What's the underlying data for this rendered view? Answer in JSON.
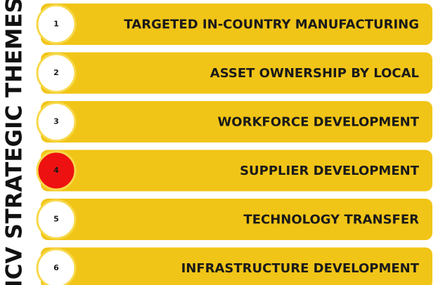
{
  "title": "ICV STRATEGIC THEMES",
  "items": [
    {
      "number": "1",
      "label": "TARGETED IN-COUNTRY MANUFACTURING",
      "circle_color": "#ffffff"
    },
    {
      "number": "2",
      "label": "ASSET OWNERSHIP BY LOCAL",
      "circle_color": "#ffffff"
    },
    {
      "number": "3",
      "label": "WORKFORCE DEVELOPMENT",
      "circle_color": "#ffffff"
    },
    {
      "number": "4",
      "label": "SUPPLIER DEVELOPMENT",
      "circle_color": "#ee1111"
    },
    {
      "number": "5",
      "label": "TECHNOLOGY TRANSFER",
      "circle_color": "#ffffff"
    },
    {
      "number": "6",
      "label": "INFRASTRUCTURE DEVELOPMENT",
      "circle_color": "#ffffff"
    }
  ]
}
